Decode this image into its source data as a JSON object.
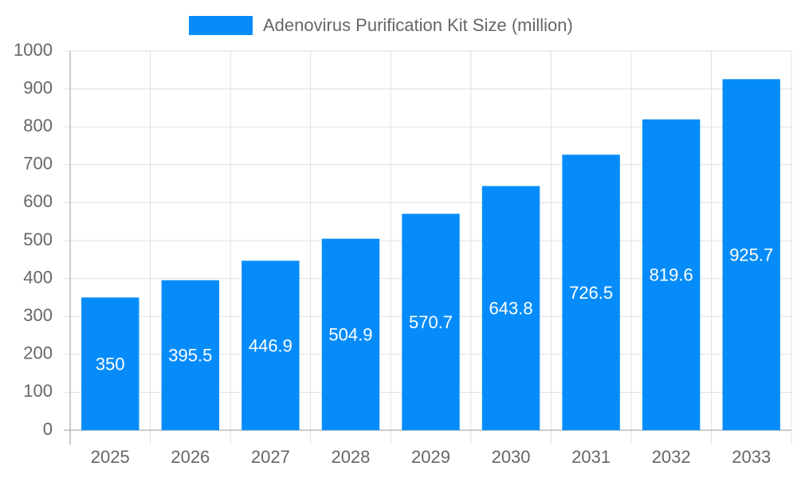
{
  "chart_data": {
    "type": "bar",
    "categories": [
      "2025",
      "2026",
      "2027",
      "2028",
      "2029",
      "2030",
      "2031",
      "2032",
      "2033"
    ],
    "series": [
      {
        "name": "Adenovirus Purification Kit Size (million)",
        "color": "#068cfa",
        "values": [
          350,
          395.5,
          446.9,
          504.9,
          570.7,
          643.8,
          726.5,
          819.6,
          925.7
        ]
      }
    ],
    "ylim": [
      0,
      1000
    ],
    "yticks": [
      0,
      100,
      200,
      300,
      400,
      500,
      600,
      700,
      800,
      900,
      1000
    ],
    "grid": true,
    "legend": "top"
  }
}
